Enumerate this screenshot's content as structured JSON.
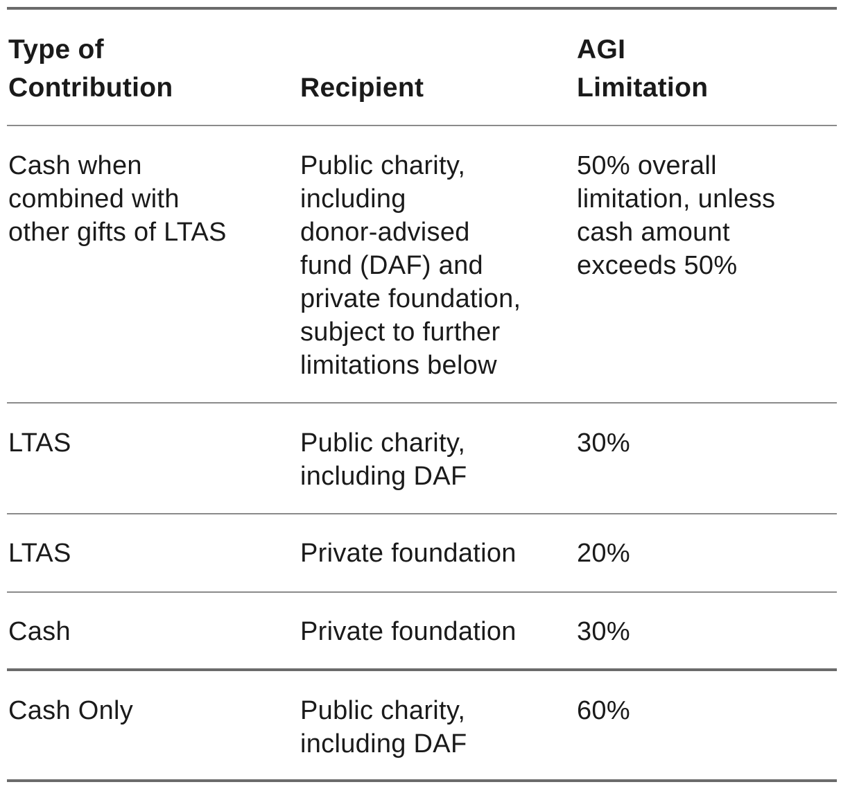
{
  "headers": {
    "type_of_contribution": "Type of\nContribution",
    "recipient": "Recipient",
    "agi_limitation": "AGI\nLimitation"
  },
  "rows": [
    {
      "type": "Cash when\ncombined with\nother gifts of LTAS",
      "recipient": "Public charity,\nincluding\ndonor-advised\nfund (DAF) and\nprivate foundation,\nsubject to further\nlimitations below",
      "limitation": "50% overall\nlimitation, unless\ncash amount\nexceeds 50%"
    },
    {
      "type": "LTAS",
      "recipient": "Public charity,\nincluding DAF",
      "limitation": "30%"
    },
    {
      "type": "LTAS",
      "recipient": "Private foundation",
      "limitation": "20%"
    },
    {
      "type": "Cash",
      "recipient": "Private foundation",
      "limitation": "30%"
    },
    {
      "type": "Cash Only",
      "recipient": "Public charity,\nincluding DAF",
      "limitation": "60%"
    }
  ]
}
